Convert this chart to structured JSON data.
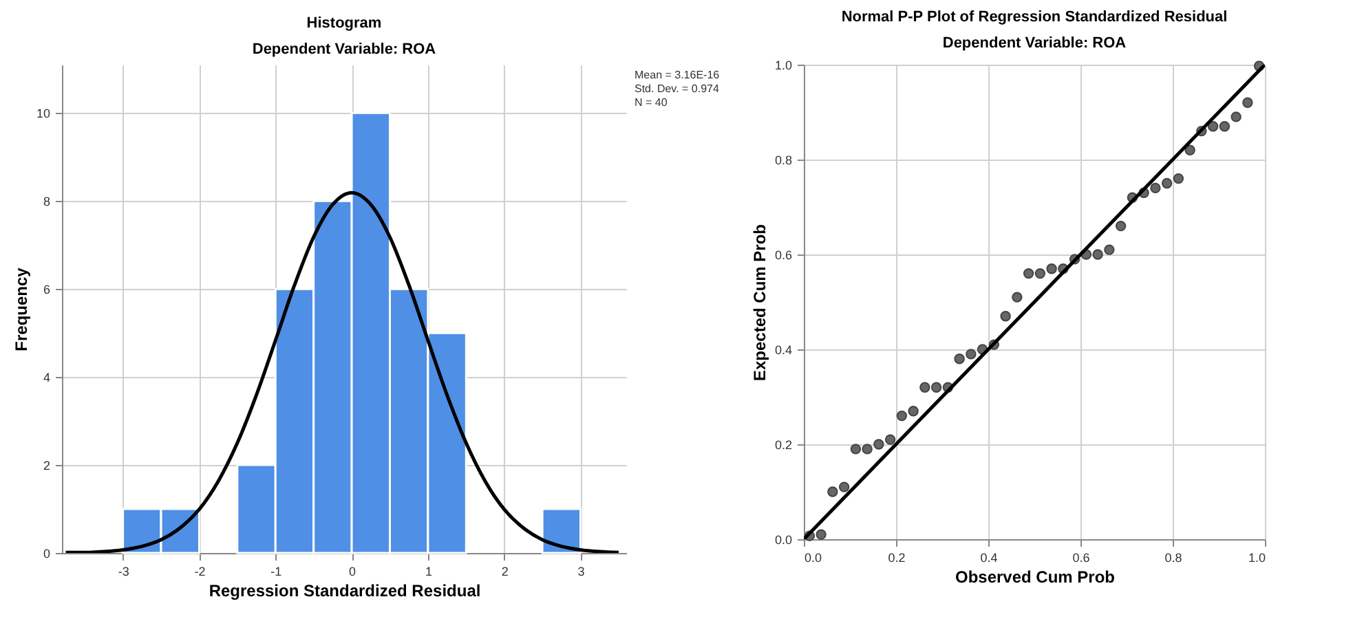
{
  "chart_data": [
    {
      "type": "histogram",
      "title": "Histogram",
      "subtitle": "Dependent Variable: ROA",
      "xlabel": "Regression Standardized Residual",
      "ylabel": "Frequency",
      "xlim": [
        -3.8,
        3.6
      ],
      "ylim": [
        0,
        11.1
      ],
      "xticks": [
        -3,
        -2,
        -1,
        0,
        1,
        2,
        3
      ],
      "yticks": [
        0,
        2,
        4,
        6,
        8,
        10
      ],
      "grid": true,
      "annotations": [
        "Mean = 3.16E-16",
        "Std. Dev. = 0.974",
        "N = 40"
      ],
      "series": [
        {
          "color": "#4f8fe6",
          "bins": [
            -3,
            -2.5,
            -2,
            -1.5,
            -1,
            -0.5,
            0,
            0.5,
            1,
            1.5,
            2,
            2.5,
            3
          ],
          "values": [
            1,
            1,
            0,
            2,
            6,
            8,
            10,
            6,
            5,
            0,
            0,
            1
          ]
        },
        {
          "type": "line",
          "color": "#000000",
          "x": [
            -3.75,
            -3.5,
            -3.25,
            -3,
            -2.75,
            -2.5,
            -2.25,
            -2,
            -1.75,
            -1.5,
            -1.25,
            -1,
            -0.75,
            -0.5,
            -0.25,
            0,
            0.25,
            0.5,
            0.75,
            1,
            1.25,
            1.5,
            1.75,
            2,
            2.25,
            2.5,
            2.75,
            3,
            3.25,
            3.5
          ],
          "values": [
            0.01,
            0.01,
            0.03,
            0.07,
            0.15,
            0.3,
            0.57,
            0.99,
            1.63,
            2.5,
            3.59,
            4.83,
            6.09,
            7.18,
            7.92,
            8.19,
            7.92,
            7.18,
            6.09,
            4.83,
            3.59,
            2.5,
            1.63,
            0.99,
            0.57,
            0.3,
            0.15,
            0.07,
            0.03,
            0.01
          ]
        }
      ]
    },
    {
      "type": "scatter",
      "title": "Normal P-P Plot of Regression Standardized Residual",
      "subtitle": "Dependent Variable: ROA",
      "xlabel": "Observed Cum Prob",
      "ylabel": "Expected Cum Prob",
      "xlim": [
        0,
        1
      ],
      "ylim": [
        0,
        1
      ],
      "xticks": [
        {
          "value": 0,
          "label": "0.0"
        },
        {
          "value": 0.2,
          "label": "0.2"
        },
        {
          "value": 0.4,
          "label": "0.4"
        },
        {
          "value": 0.6,
          "label": "0.6"
        },
        {
          "value": 0.8,
          "label": "0.8"
        },
        {
          "value": 1,
          "label": "1.0"
        }
      ],
      "yticks": [
        {
          "value": 0,
          "label": "0.0"
        },
        {
          "value": 0.2,
          "label": "0.2"
        },
        {
          "value": 0.4,
          "label": "0.4"
        },
        {
          "value": 0.6,
          "label": "0.6"
        },
        {
          "value": 0.8,
          "label": "0.8"
        },
        {
          "value": 1,
          "label": "1.0"
        }
      ],
      "grid": true,
      "series": [
        {
          "marker": "circle",
          "color": "#666666",
          "x": [
            0.0125,
            0.0375,
            0.0625,
            0.0875,
            0.1125,
            0.1375,
            0.1625,
            0.1875,
            0.2125,
            0.2375,
            0.2625,
            0.2875,
            0.3125,
            0.3375,
            0.3625,
            0.3875,
            0.4125,
            0.4375,
            0.4625,
            0.4875,
            0.5125,
            0.5375,
            0.5625,
            0.5875,
            0.6125,
            0.6375,
            0.6625,
            0.6875,
            0.7125,
            0.7375,
            0.7625,
            0.7875,
            0.8125,
            0.8375,
            0.8625,
            0.8875,
            0.9125,
            0.9375,
            0.9625,
            0.9875
          ],
          "values": [
            0.007,
            0.01,
            0.1,
            0.11,
            0.19,
            0.19,
            0.2,
            0.21,
            0.26,
            0.27,
            0.32,
            0.32,
            0.32,
            0.38,
            0.39,
            0.4,
            0.41,
            0.47,
            0.51,
            0.56,
            0.56,
            0.57,
            0.57,
            0.59,
            0.6,
            0.6,
            0.61,
            0.66,
            0.72,
            0.73,
            0.74,
            0.75,
            0.76,
            0.82,
            0.86,
            0.87,
            0.87,
            0.89,
            0.92,
            0.997
          ]
        },
        {
          "type": "line",
          "color": "#000000",
          "x": [
            0,
            1
          ],
          "values": [
            0,
            1
          ]
        }
      ]
    }
  ]
}
